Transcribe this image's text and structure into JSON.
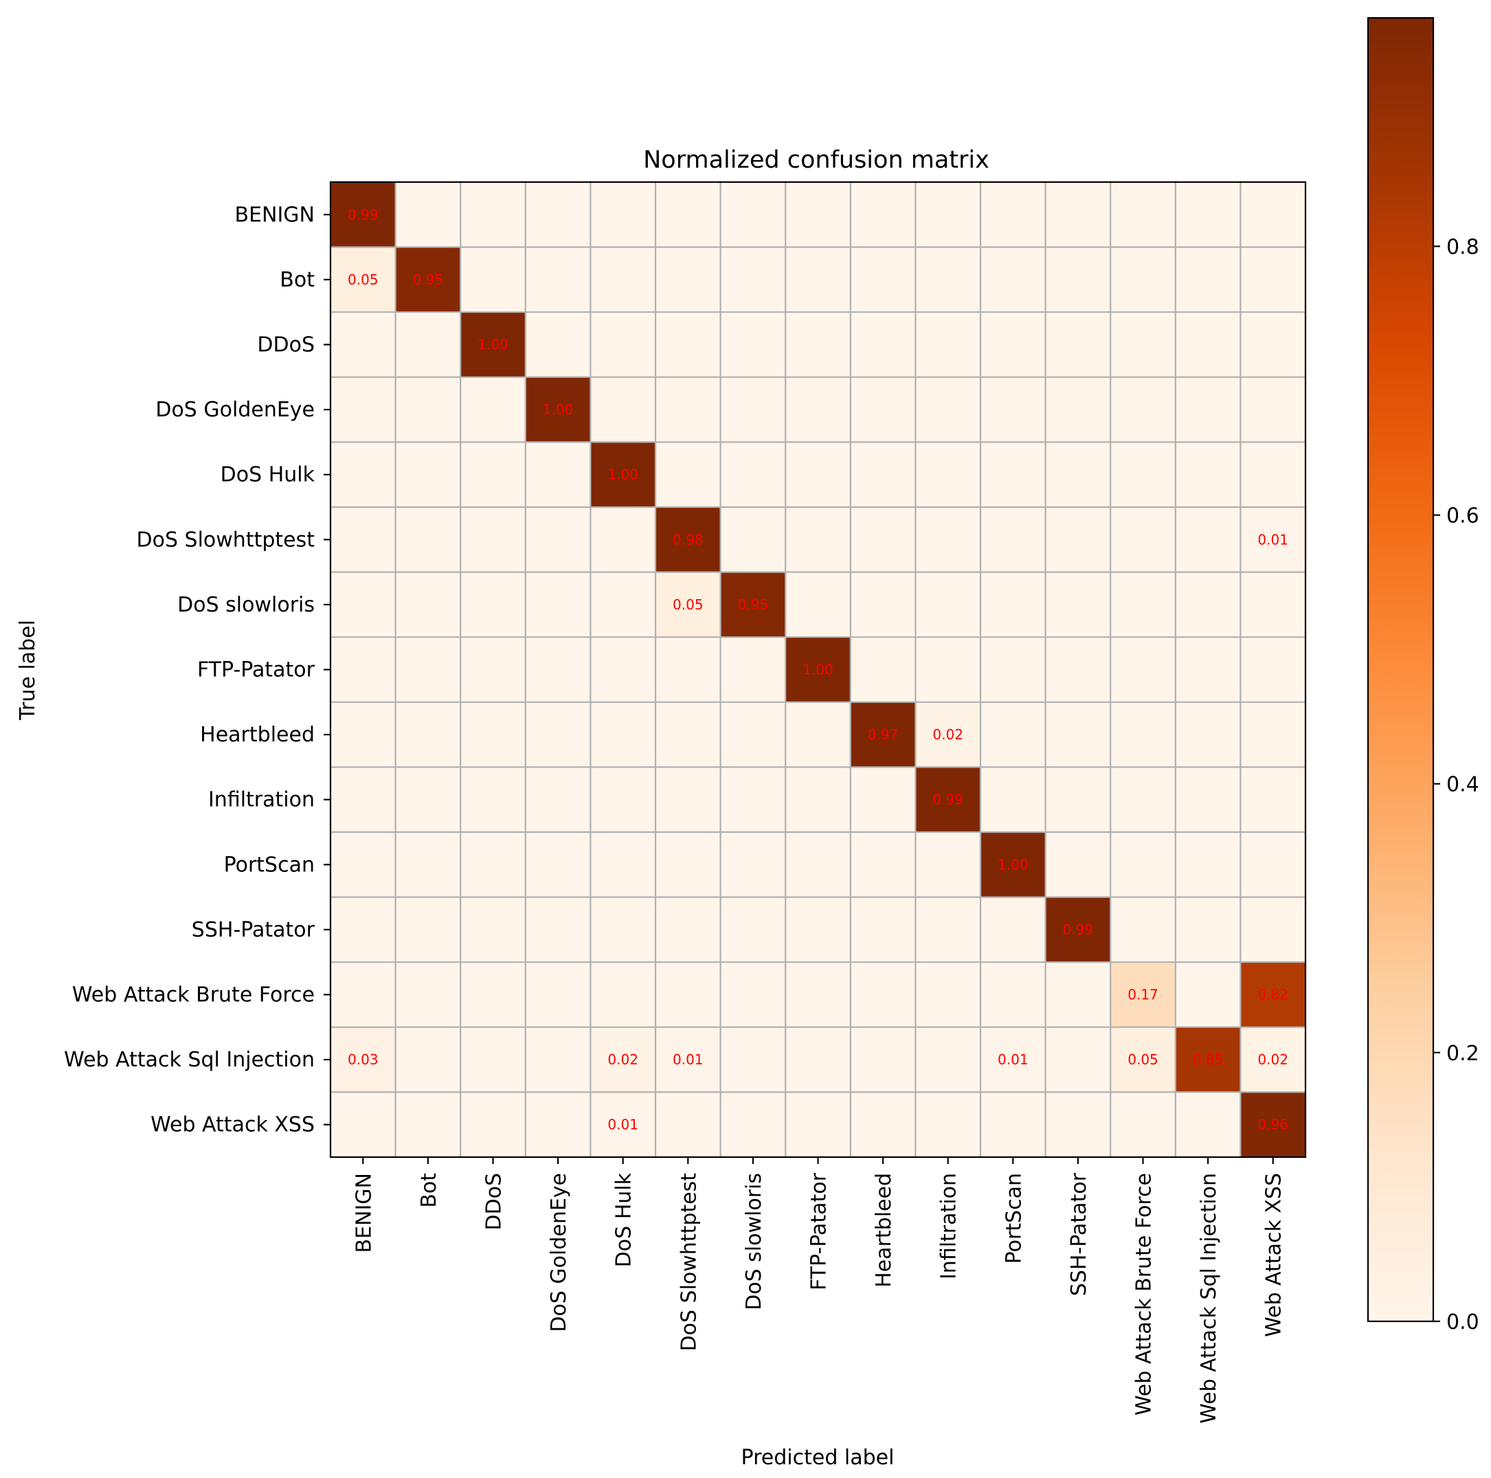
{
  "chart_data": {
    "type": "heatmap",
    "title": "Normalized confusion matrix",
    "xlabel": "Predicted label",
    "ylabel": "True label",
    "categories": [
      "BENIGN",
      "Bot",
      "DDoS",
      "DoS GoldenEye",
      "DoS Hulk",
      "DoS Slowhttptest",
      "DoS slowloris",
      "FTP-Patator",
      "Heartbleed",
      "Infiltration",
      "PortScan",
      "SSH-Patator",
      "Web Attack Brute Force",
      "Web Attack Sql Injection",
      "Web Attack XSS"
    ],
    "matrix": [
      [
        0.99,
        0,
        0,
        0,
        0,
        0,
        0,
        0,
        0,
        0,
        0,
        0,
        0,
        0,
        0
      ],
      [
        0.05,
        0.95,
        0,
        0,
        0,
        0,
        0,
        0,
        0,
        0,
        0,
        0,
        0,
        0,
        0
      ],
      [
        0,
        0,
        1.0,
        0,
        0,
        0,
        0,
        0,
        0,
        0,
        0,
        0,
        0,
        0,
        0
      ],
      [
        0,
        0,
        0,
        1.0,
        0,
        0,
        0,
        0,
        0,
        0,
        0,
        0,
        0,
        0,
        0
      ],
      [
        0,
        0,
        0,
        0,
        1.0,
        0,
        0,
        0,
        0,
        0,
        0,
        0,
        0,
        0,
        0
      ],
      [
        0,
        0,
        0,
        0,
        0,
        0.98,
        0,
        0,
        0,
        0,
        0,
        0,
        0,
        0,
        0.01
      ],
      [
        0,
        0,
        0,
        0,
        0,
        0.05,
        0.95,
        0,
        0,
        0,
        0,
        0,
        0,
        0,
        0
      ],
      [
        0,
        0,
        0,
        0,
        0,
        0,
        0,
        1.0,
        0,
        0,
        0,
        0,
        0,
        0,
        0
      ],
      [
        0,
        0,
        0,
        0,
        0,
        0,
        0,
        0,
        0.97,
        0.02,
        0,
        0,
        0,
        0,
        0
      ],
      [
        0,
        0,
        0,
        0,
        0,
        0,
        0,
        0,
        0,
        0.99,
        0,
        0,
        0,
        0,
        0
      ],
      [
        0,
        0,
        0,
        0,
        0,
        0,
        0,
        0,
        0,
        0,
        1.0,
        0,
        0,
        0,
        0
      ],
      [
        0,
        0,
        0,
        0,
        0,
        0,
        0,
        0,
        0,
        0,
        0,
        0.99,
        0,
        0,
        0
      ],
      [
        0,
        0,
        0,
        0,
        0,
        0,
        0,
        0,
        0,
        0,
        0,
        0,
        0.17,
        0,
        0.82
      ],
      [
        0.03,
        0,
        0,
        0,
        0.02,
        0.01,
        0,
        0,
        0,
        0,
        0.01,
        0,
        0.05,
        0.85,
        0.02
      ],
      [
        0,
        0,
        0,
        0,
        0.01,
        0,
        0,
        0,
        0,
        0,
        0,
        0,
        0,
        0,
        0.96
      ]
    ],
    "colorbar": {
      "range": [
        0,
        0.97
      ],
      "ticks": [
        0.0,
        0.2,
        0.4,
        0.6,
        0.8
      ],
      "tick_labels": [
        "0.0",
        "0.2",
        "0.4",
        "0.6",
        "0.8"
      ]
    },
    "colormap": "Oranges",
    "annotation_color": "#ff0000",
    "grid": true
  }
}
